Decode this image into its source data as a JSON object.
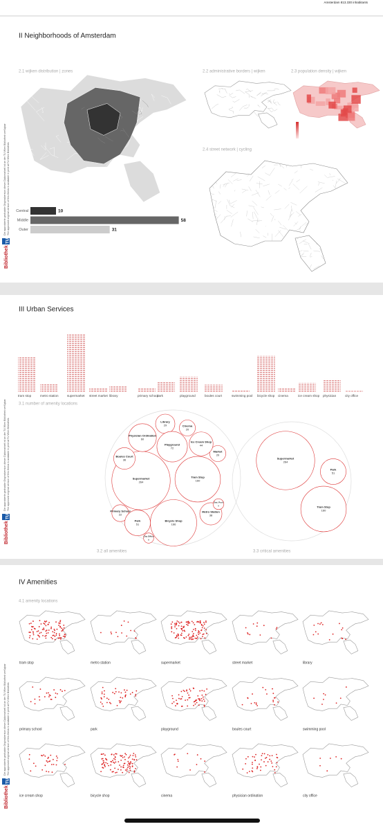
{
  "header": {
    "note": "Amsterdam 813.330 inhabitants"
  },
  "library_stamp": {
    "logo": "Bibliothek",
    "logo_mark": "TU",
    "text_de": "Die approbierte gedruckte Originalversion dieser Diplomarbeit ist an der TU Wien Bibliothek verfügbar",
    "text_en": "The approved original version of this thesis is available in print at TU Wien Bibliothek."
  },
  "neighborhoods": {
    "title": "II Neighborhoods of Amsterdam",
    "zones_caption": "2.1 wijken distribution | zones",
    "borders_caption": "2.2 administrative borders | wijken",
    "density_caption": "2.3 population density | wijken",
    "streets_caption": "2.4 street network | cycling",
    "chart_data": {
      "type": "bar",
      "categories": [
        "Central",
        "Middle",
        "Outer"
      ],
      "values": [
        10,
        58,
        31
      ],
      "colors": [
        "#333333",
        "#666666",
        "#cccccc"
      ]
    }
  },
  "services": {
    "title": "III Urban Services",
    "counts_caption": "3.1 number of amenity locations",
    "all_caption": "3.2 all amenities",
    "critical_caption": "3.3 critical amenities",
    "chart_data": {
      "type": "bar",
      "color": "#e39a9a",
      "categories": [
        "tram stop",
        "metro station",
        "supermarket",
        "street market",
        "library",
        "primary school",
        "park",
        "playground",
        "boules court",
        "swimming pool",
        "bicycle shop",
        "cinema",
        "ice cream shop",
        "physician",
        "city office"
      ],
      "bubble_labels": [
        "Tram Stop",
        "Metro Station",
        "Supermarket",
        "Market",
        "Library",
        "Primary School",
        "Park",
        "Playground",
        "Boules Court",
        "Swi. Pool",
        "Bicycle Shop",
        "Cinema",
        "Ice Cream Shop",
        "Physician Ordination",
        "City Office"
      ],
      "values": [
        160,
        38,
        264,
        20,
        29,
        22,
        51,
        72,
        36,
        9,
        166,
        20,
        44,
        60,
        8
      ]
    }
  },
  "amenities": {
    "title": "IV Amenities",
    "caption": "4.1 amenity locations",
    "map_labels": [
      "tram stop",
      "metro station",
      "supermarket",
      "street market",
      "library",
      "primary school",
      "park",
      "playground",
      "boules court",
      "swimming pool",
      "ice cream shop",
      "bicycle shop",
      "cinema",
      "physician ordination",
      "city office"
    ]
  }
}
